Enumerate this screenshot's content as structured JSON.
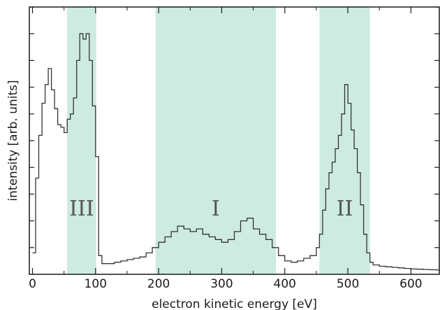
{
  "chart_data": {
    "type": "line",
    "title": "",
    "xlabel": "electron kinetic energy [eV]",
    "ylabel": "intensity [arb. units]",
    "xlim": [
      -5,
      645
    ],
    "ylim": [
      0,
      1.0
    ],
    "y_tick_labels_shown": false,
    "x_ticks": [
      0,
      100,
      200,
      300,
      400,
      500,
      600
    ],
    "x_tick_labels": [
      "0",
      "100",
      "200",
      "300",
      "400",
      "500",
      "600"
    ],
    "grid": false,
    "legend": "none",
    "step_style": true,
    "colors": {
      "line": "#333333",
      "region": "#cdebe0"
    },
    "regions": [
      {
        "label": "III",
        "x0": 55,
        "x1": 101
      },
      {
        "label": "I",
        "x0": 195,
        "x1": 386
      },
      {
        "label": "II",
        "x0": 455,
        "x1": 535
      }
    ],
    "series": [
      {
        "x": [
          0,
          5,
          10,
          15,
          20,
          25,
          30,
          35,
          40,
          45,
          50,
          55,
          60,
          65,
          70,
          75,
          80,
          85,
          90,
          95,
          100,
          105,
          110,
          120,
          130,
          140,
          150,
          160,
          170,
          180,
          190,
          200,
          210,
          220,
          230,
          240,
          250,
          260,
          270,
          280,
          290,
          300,
          310,
          320,
          330,
          340,
          350,
          360,
          370,
          380,
          390,
          400,
          410,
          420,
          430,
          440,
          450,
          455,
          460,
          465,
          470,
          475,
          480,
          485,
          490,
          495,
          500,
          505,
          510,
          515,
          520,
          525,
          530,
          535,
          540,
          550,
          560,
          570,
          580,
          590,
          600,
          610,
          620,
          630,
          640
        ],
        "y": [
          0.08,
          0.36,
          0.52,
          0.64,
          0.71,
          0.77,
          0.69,
          0.62,
          0.56,
          0.55,
          0.53,
          0.58,
          0.6,
          0.66,
          0.8,
          0.9,
          0.88,
          0.9,
          0.8,
          0.63,
          0.44,
          0.07,
          0.04,
          0.04,
          0.045,
          0.05,
          0.055,
          0.06,
          0.065,
          0.08,
          0.1,
          0.12,
          0.14,
          0.16,
          0.18,
          0.17,
          0.16,
          0.17,
          0.15,
          0.14,
          0.13,
          0.12,
          0.13,
          0.16,
          0.2,
          0.21,
          0.17,
          0.15,
          0.13,
          0.1,
          0.07,
          0.05,
          0.045,
          0.05,
          0.06,
          0.07,
          0.1,
          0.15,
          0.24,
          0.32,
          0.38,
          0.42,
          0.47,
          0.52,
          0.6,
          0.71,
          0.64,
          0.54,
          0.47,
          0.38,
          0.26,
          0.15,
          0.08,
          0.045,
          0.035,
          0.03,
          0.028,
          0.026,
          0.024,
          0.022,
          0.02,
          0.019,
          0.018,
          0.017,
          0.016
        ]
      }
    ]
  }
}
